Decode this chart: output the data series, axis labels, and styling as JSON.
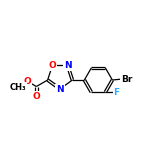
{
  "bg_color": "#ffffff",
  "bond_color": "#000000",
  "atom_colors": {
    "O": "#ff0000",
    "N": "#0000ff",
    "Br": "#000000",
    "F": "#33aaff"
  },
  "font_size": 6.5,
  "line_width": 0.9,
  "figsize": [
    1.52,
    1.52
  ],
  "dpi": 100
}
